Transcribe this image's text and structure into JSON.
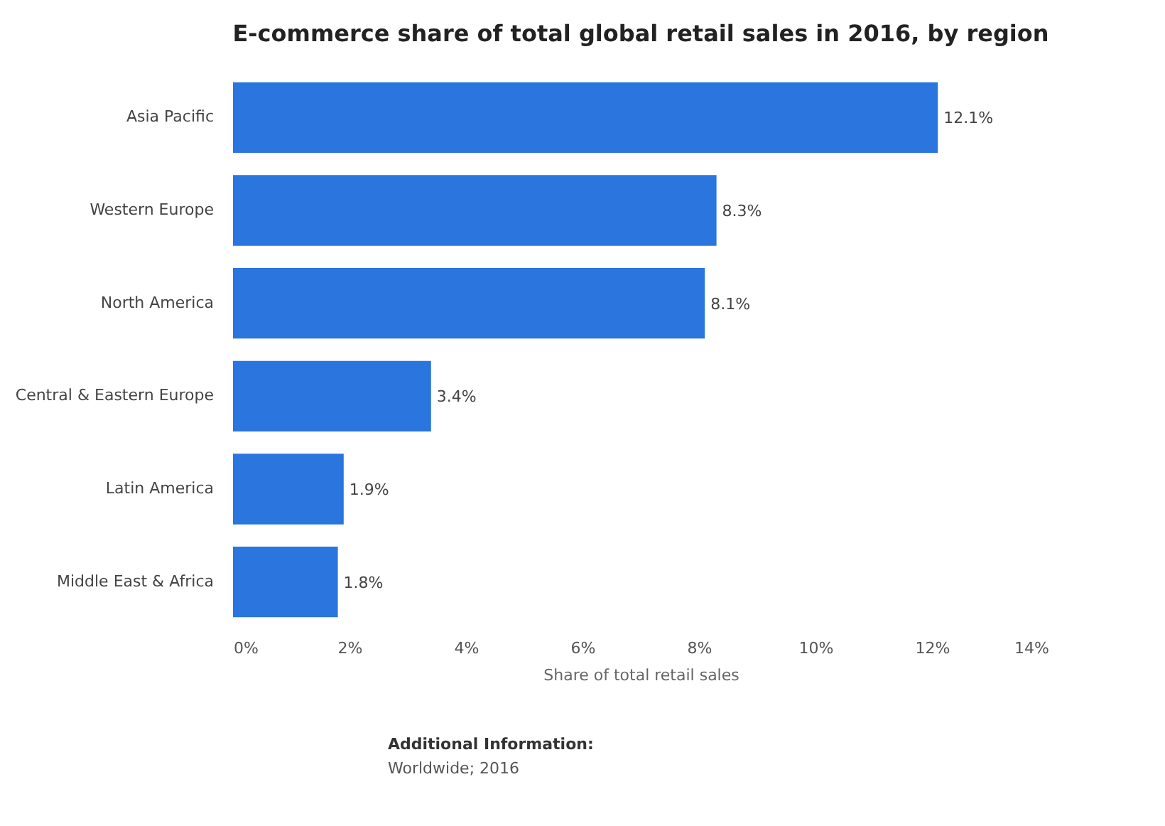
{
  "chart_data": {
    "type": "bar",
    "orientation": "horizontal",
    "title": "E-commerce share of total global retail sales in 2016, by region",
    "xlabel": "Share of total retail sales",
    "categories": [
      "Asia Pacific",
      "Western Europe",
      "North America",
      "Central & Eastern Europe",
      "Latin America",
      "Middle East & Africa"
    ],
    "values": [
      12.1,
      8.3,
      8.1,
      3.4,
      1.9,
      1.8
    ],
    "value_labels": [
      "12.1%",
      "8.3%",
      "8.1%",
      "3.4%",
      "1.9%",
      "1.8%"
    ],
    "color": "#2a75de",
    "xlim": [
      0,
      14
    ],
    "xticks": [
      {
        "value": 0,
        "label": "0%"
      },
      {
        "value": 2,
        "label": "2%"
      },
      {
        "value": 4,
        "label": "4%"
      },
      {
        "value": 6,
        "label": "6%"
      },
      {
        "value": 8,
        "label": "8%"
      },
      {
        "value": 10,
        "label": "10%"
      },
      {
        "value": 12,
        "label": "12%"
      },
      {
        "value": 14,
        "label": "14%"
      }
    ],
    "grid": false,
    "annotations": [
      "Additional Information:",
      "Worldwide; 2016"
    ]
  }
}
